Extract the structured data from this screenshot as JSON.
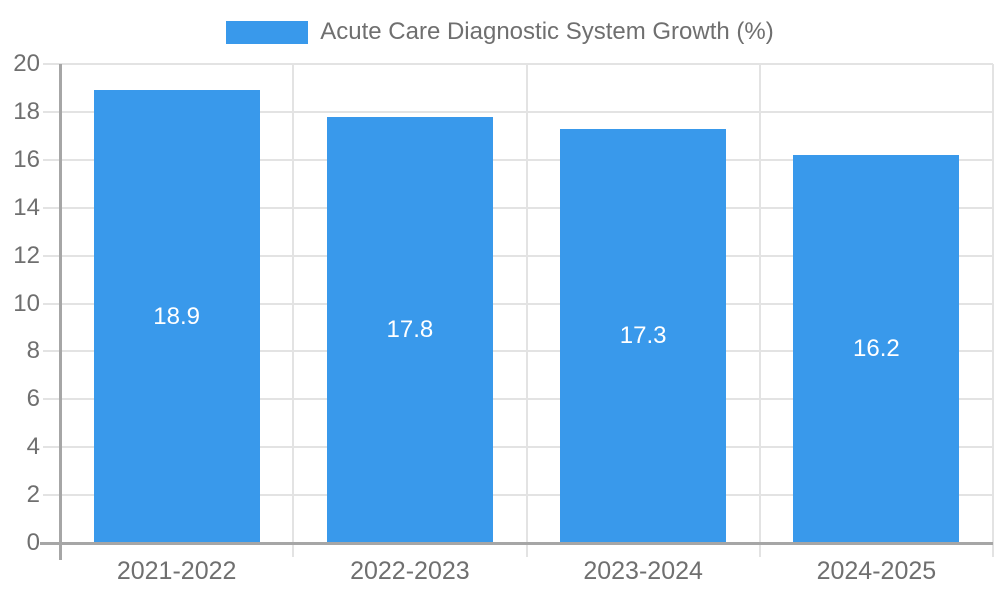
{
  "chart_data": {
    "type": "bar",
    "title": "Acute Care Diagnostic System Growth (%)",
    "legend_position": "top",
    "categories": [
      "2021-2022",
      "2022-2023",
      "2023-2024",
      "2024-2025"
    ],
    "values": [
      18.9,
      17.8,
      17.3,
      16.2
    ],
    "value_labels": [
      "18.9",
      "17.8",
      "17.3",
      "16.2"
    ],
    "series": [
      {
        "name": "Acute Care Diagnostic System Growth (%)",
        "values": [
          18.9,
          17.8,
          17.3,
          16.2
        ]
      }
    ],
    "xlabel": "",
    "ylabel": "",
    "ylim": [
      0,
      20
    ],
    "ytick_step": 2,
    "ytick_labels": [
      "0",
      "2",
      "4",
      "6",
      "8",
      "10",
      "12",
      "14",
      "16",
      "18",
      "20"
    ],
    "grid": true,
    "colors": {
      "bar": "#3999EB",
      "value_label": "#FFFFFF"
    }
  }
}
